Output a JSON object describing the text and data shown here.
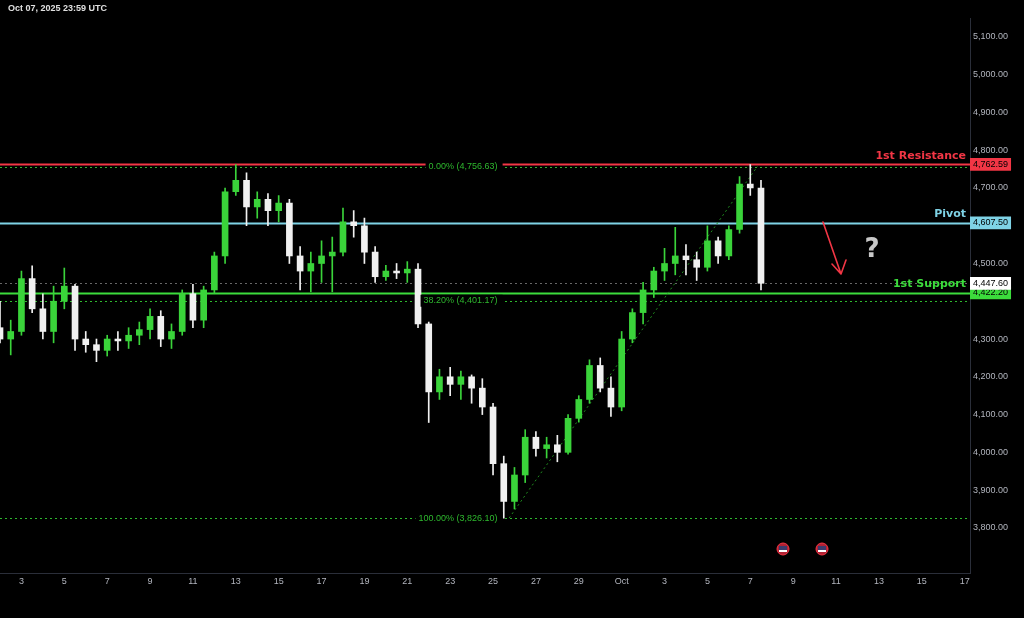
{
  "chart_data": {
    "type": "candlestick",
    "annotations": [
      "Oct 07, 2025 23:59 UTC",
      {
        "text": "?",
        "x": "2025-10-11T00:00",
        "y": 4447.6
      }
    ],
    "x": [
      "2025-09-02T00:00",
      "2025-09-02T12:00",
      "2025-09-03T00:00",
      "2025-09-03T12:00",
      "2025-09-04T00:00",
      "2025-09-04T12:00",
      "2025-09-05T00:00",
      "2025-09-05T12:00",
      "2025-09-06T00:00",
      "2025-09-06T12:00",
      "2025-09-07T00:00",
      "2025-09-07T12:00",
      "2025-09-08T00:00",
      "2025-09-08T12:00",
      "2025-09-09T00:00",
      "2025-09-09T12:00",
      "2025-09-10T00:00",
      "2025-09-10T12:00",
      "2025-09-11T00:00",
      "2025-09-11T12:00",
      "2025-09-12T00:00",
      "2025-09-12T12:00",
      "2025-09-13T00:00",
      "2025-09-13T12:00",
      "2025-09-14T00:00",
      "2025-09-14T12:00",
      "2025-09-15T00:00",
      "2025-09-15T12:00",
      "2025-09-16T00:00",
      "2025-09-16T12:00",
      "2025-09-17T00:00",
      "2025-09-17T12:00",
      "2025-09-18T00:00",
      "2025-09-18T12:00",
      "2025-09-19T00:00",
      "2025-09-19T12:00",
      "2025-09-20T00:00",
      "2025-09-20T12:00",
      "2025-09-21T00:00",
      "2025-09-21T12:00",
      "2025-09-22T00:00",
      "2025-09-22T12:00",
      "2025-09-23T00:00",
      "2025-09-23T12:00",
      "2025-09-24T00:00",
      "2025-09-24T12:00",
      "2025-09-25T00:00",
      "2025-09-25T12:00",
      "2025-09-26T00:00",
      "2025-09-26T12:00",
      "2025-09-27T00:00",
      "2025-09-27T12:00",
      "2025-09-28T00:00",
      "2025-09-28T12:00",
      "2025-09-29T00:00",
      "2025-09-29T12:00",
      "2025-09-30T00:00",
      "2025-09-30T12:00",
      "2025-10-01T00:00",
      "2025-10-01T12:00",
      "2025-10-02T00:00",
      "2025-10-02T12:00",
      "2025-10-03T00:00",
      "2025-10-03T12:00",
      "2025-10-04T00:00",
      "2025-10-04T12:00",
      "2025-10-05T00:00",
      "2025-10-05T12:00",
      "2025-10-06T00:00",
      "2025-10-06T12:00",
      "2025-10-07T00:00",
      "2025-10-07T12:00"
    ],
    "ohlc": [
      [
        4330,
        4400,
        4290,
        4300
      ],
      [
        4300,
        4350,
        4258,
        4320
      ],
      [
        4320,
        4480,
        4310,
        4460
      ],
      [
        4460,
        4494,
        4370,
        4380
      ],
      [
        4380,
        4420,
        4300,
        4320
      ],
      [
        4320,
        4440,
        4290,
        4400
      ],
      [
        4400,
        4488,
        4380,
        4440
      ],
      [
        4440,
        4445,
        4270,
        4300
      ],
      [
        4300,
        4320,
        4265,
        4285
      ],
      [
        4285,
        4300,
        4240,
        4270
      ],
      [
        4270,
        4310,
        4255,
        4300
      ],
      [
        4300,
        4320,
        4270,
        4295
      ],
      [
        4295,
        4330,
        4275,
        4310
      ],
      [
        4310,
        4345,
        4285,
        4325
      ],
      [
        4325,
        4380,
        4300,
        4360
      ],
      [
        4360,
        4375,
        4280,
        4300
      ],
      [
        4300,
        4340,
        4275,
        4320
      ],
      [
        4320,
        4430,
        4310,
        4420
      ],
      [
        4420,
        4445,
        4330,
        4350
      ],
      [
        4350,
        4440,
        4330,
        4430
      ],
      [
        4430,
        4530,
        4420,
        4520
      ],
      [
        4520,
        4700,
        4500,
        4690
      ],
      [
        4690,
        4762,
        4680,
        4720
      ],
      [
        4720,
        4740,
        4600,
        4650
      ],
      [
        4650,
        4690,
        4620,
        4670
      ],
      [
        4670,
        4685,
        4600,
        4640
      ],
      [
        4640,
        4680,
        4610,
        4660
      ],
      [
        4660,
        4670,
        4500,
        4520
      ],
      [
        4520,
        4545,
        4430,
        4480
      ],
      [
        4480,
        4530,
        4425,
        4500
      ],
      [
        4500,
        4560,
        4450,
        4520
      ],
      [
        4520,
        4570,
        4425,
        4530
      ],
      [
        4530,
        4647,
        4520,
        4610
      ],
      [
        4610,
        4640,
        4570,
        4600
      ],
      [
        4600,
        4620,
        4500,
        4530
      ],
      [
        4530,
        4545,
        4450,
        4465
      ],
      [
        4465,
        4495,
        4455,
        4480
      ],
      [
        4480,
        4500,
        4460,
        4475
      ],
      [
        4475,
        4505,
        4450,
        4485
      ],
      [
        4485,
        4500,
        4330,
        4340
      ],
      [
        4340,
        4345,
        4079,
        4160
      ],
      [
        4160,
        4220,
        4140,
        4200
      ],
      [
        4200,
        4225,
        4150,
        4180
      ],
      [
        4180,
        4215,
        4140,
        4200
      ],
      [
        4200,
        4205,
        4130,
        4170
      ],
      [
        4170,
        4195,
        4100,
        4120
      ],
      [
        4120,
        4130,
        3940,
        3970
      ],
      [
        3970,
        3990,
        3826,
        3870
      ],
      [
        3870,
        3960,
        3850,
        3940
      ],
      [
        3940,
        4060,
        3920,
        4040
      ],
      [
        4040,
        4055,
        3990,
        4010
      ],
      [
        4010,
        4040,
        3985,
        4020
      ],
      [
        4020,
        4045,
        3975,
        4000
      ],
      [
        4000,
        4100,
        3995,
        4090
      ],
      [
        4090,
        4150,
        4080,
        4140
      ],
      [
        4140,
        4245,
        4130,
        4230
      ],
      [
        4230,
        4250,
        4160,
        4170
      ],
      [
        4170,
        4200,
        4095,
        4120
      ],
      [
        4120,
        4320,
        4110,
        4300
      ],
      [
        4300,
        4380,
        4290,
        4370
      ],
      [
        4370,
        4450,
        4340,
        4430
      ],
      [
        4430,
        4490,
        4410,
        4480
      ],
      [
        4480,
        4540,
        4455,
        4500
      ],
      [
        4500,
        4596,
        4470,
        4520
      ],
      [
        4520,
        4550,
        4470,
        4510
      ],
      [
        4510,
        4530,
        4455,
        4490
      ],
      [
        4490,
        4600,
        4480,
        4560
      ],
      [
        4560,
        4570,
        4500,
        4520
      ],
      [
        4520,
        4600,
        4510,
        4590
      ],
      [
        4590,
        4730,
        4580,
        4710
      ],
      [
        4710,
        4762,
        4680,
        4700
      ],
      [
        4700,
        4720,
        4430,
        4447.6
      ]
    ],
    "colors": [
      "#f0f0f0",
      "#3ad33a",
      "#3ad33a",
      "#f0f0f0",
      "#f0f0f0",
      "#3ad33a",
      "#3ad33a",
      "#f0f0f0",
      "#f0f0f0",
      "#f0f0f0",
      "#3ad33a",
      "#f0f0f0",
      "#3ad33a",
      "#3ad33a",
      "#3ad33a",
      "#f0f0f0",
      "#3ad33a",
      "#3ad33a",
      "#f0f0f0",
      "#3ad33a",
      "#3ad33a",
      "#3ad33a",
      "#3ad33a",
      "#f0f0f0",
      "#3ad33a",
      "#f0f0f0",
      "#3ad33a",
      "#f0f0f0",
      "#f0f0f0",
      "#3ad33a",
      "#3ad33a",
      "#3ad33a",
      "#3ad33a",
      "#f0f0f0",
      "#f0f0f0",
      "#f0f0f0",
      "#3ad33a",
      "#f0f0f0",
      "#3ad33a",
      "#f0f0f0",
      "#f0f0f0",
      "#3ad33a",
      "#f0f0f0",
      "#3ad33a",
      "#f0f0f0",
      "#f0f0f0",
      "#f0f0f0",
      "#f0f0f0",
      "#3ad33a",
      "#3ad33a",
      "#f0f0f0",
      "#3ad33a",
      "#f0f0f0",
      "#3ad33a",
      "#3ad33a",
      "#3ad33a",
      "#f0f0f0",
      "#f0f0f0",
      "#3ad33a",
      "#3ad33a",
      "#3ad33a",
      "#3ad33a",
      "#3ad33a",
      "#3ad33a",
      "#f0f0f0",
      "#f0f0f0",
      "#3ad33a",
      "#f0f0f0",
      "#3ad33a",
      "#3ad33a",
      "#f0f0f0",
      "#f0f0f0"
    ],
    "series": [
      {
        "type": "line",
        "x": [
          "2025-09-25T18:00",
          "2025-10-07T08:00"
        ],
        "values": [
          3826,
          4757
        ],
        "color": "#1f8a1f",
        "line_style": "dotted"
      }
    ],
    "ref_lines": [
      {
        "axis": "y",
        "value": 4762.59,
        "label": "1st Resistance",
        "color": "#f23645",
        "line_style": "solid"
      },
      {
        "axis": "y",
        "value": 4607.5,
        "label": "Pivot",
        "color": "#7fd3e6",
        "line_style": "solid"
      },
      {
        "axis": "y",
        "value": 4422.2,
        "label": "1st Support",
        "color": "#3cdc3c",
        "line_style": "solid"
      },
      {
        "axis": "y",
        "value": 4447.6,
        "color": "#ffffff",
        "line_style": "dotted"
      },
      {
        "axis": "y",
        "value": 4756.63,
        "label": "0.00% (4,756.63)",
        "color": "#2eb82e",
        "line_style": "dotted"
      },
      {
        "axis": "y",
        "value": 4401.17,
        "label": "38.20% (4,401.17)",
        "color": "#2eb82e",
        "line_style": "dotted"
      },
      {
        "axis": "y",
        "value": 3826.1,
        "label": "100.00% (3,826.10)",
        "color": "#2eb82e",
        "line_style": "dotted"
      }
    ],
    "xlim": [
      "2025-09-02T00:00",
      "2025-10-17T06:00"
    ],
    "xticks": [
      {
        "value": "2025-09-03",
        "label": "3"
      },
      {
        "value": "2025-09-05",
        "label": "5"
      },
      {
        "value": "2025-09-07",
        "label": "7"
      },
      {
        "value": "2025-09-09",
        "label": "9"
      },
      {
        "value": "2025-09-11",
        "label": "11"
      },
      {
        "value": "2025-09-13",
        "label": "13"
      },
      {
        "value": "2025-09-15",
        "label": "15"
      },
      {
        "value": "2025-09-17",
        "label": "17"
      },
      {
        "value": "2025-09-19",
        "label": "19"
      },
      {
        "value": "2025-09-21",
        "label": "21"
      },
      {
        "value": "2025-09-23",
        "label": "23"
      },
      {
        "value": "2025-09-25",
        "label": "25"
      },
      {
        "value": "2025-09-27",
        "label": "27"
      },
      {
        "value": "2025-09-29",
        "label": "29"
      },
      {
        "value": "2025-10-01",
        "label": "Oct"
      },
      {
        "value": "2025-10-03",
        "label": "3"
      },
      {
        "value": "2025-10-05",
        "label": "5"
      },
      {
        "value": "2025-10-07",
        "label": "7"
      },
      {
        "value": "2025-10-09",
        "label": "9"
      },
      {
        "value": "2025-10-11",
        "label": "11"
      },
      {
        "value": "2025-10-13",
        "label": "13"
      },
      {
        "value": "2025-10-15",
        "label": "15"
      },
      {
        "value": "2025-10-17",
        "label": "17"
      }
    ],
    "ylim": [
      3680,
      5150
    ],
    "yticks": [
      {
        "value": 3800,
        "label": "3,800.00"
      },
      {
        "value": 3900,
        "label": "3,900.00"
      },
      {
        "value": 4000,
        "label": "4,000.00"
      },
      {
        "value": 4100,
        "label": "4,100.00"
      },
      {
        "value": 4200,
        "label": "4,200.00"
      },
      {
        "value": 4300,
        "label": "4,300.00"
      },
      {
        "value": 4422.2,
        "label": "4,422.20"
      },
      {
        "value": 4447.6,
        "label": "4,447.60"
      },
      {
        "value": 4500,
        "label": "4,500.00"
      },
      {
        "value": 4607.5,
        "label": "4,607.50"
      },
      {
        "value": 4700,
        "label": "4,700.00"
      },
      {
        "value": 4762.59,
        "label": "4,762.59"
      },
      {
        "value": 4800,
        "label": "4,800.00"
      },
      {
        "value": 4900,
        "label": "4,900.00"
      },
      {
        "value": 5000,
        "label": "5,000.00"
      },
      {
        "value": 5100,
        "label": "5,100.00"
      }
    ],
    "grid": false,
    "legend": false
  }
}
